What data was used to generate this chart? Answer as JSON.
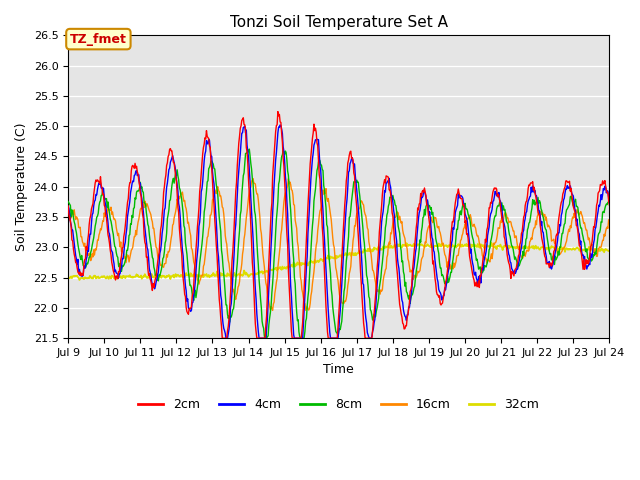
{
  "title": "Tonzi Soil Temperature Set A",
  "xlabel": "Time",
  "ylabel": "Soil Temperature (C)",
  "ylim": [
    21.5,
    26.5
  ],
  "xlim_days": [
    9,
    24
  ],
  "x_ticks": [
    9,
    10,
    11,
    12,
    13,
    14,
    15,
    16,
    17,
    18,
    19,
    20,
    21,
    22,
    23,
    24
  ],
  "x_tick_labels": [
    "Jul 9",
    "Jul 10",
    "Jul 11",
    "Jul 12",
    "Jul 13",
    "Jul 14",
    "Jul 15",
    "Jul 16",
    "Jul 17",
    "Jul 18",
    "Jul 19",
    "Jul 20",
    "Jul 21",
    "Jul 22",
    "Jul 23",
    "Jul 24"
  ],
  "colors": {
    "2cm": "#ff0000",
    "4cm": "#0000ff",
    "8cm": "#00bb00",
    "16cm": "#ff8800",
    "32cm": "#dddd00"
  },
  "annotation_text": "TZ_fmet",
  "annotation_color": "#cc0000",
  "annotation_bg": "#ffffcc",
  "annotation_border": "#cc8800",
  "bg_color": "#e5e5e5",
  "title_fontsize": 11,
  "label_fontsize": 9,
  "tick_fontsize": 8
}
